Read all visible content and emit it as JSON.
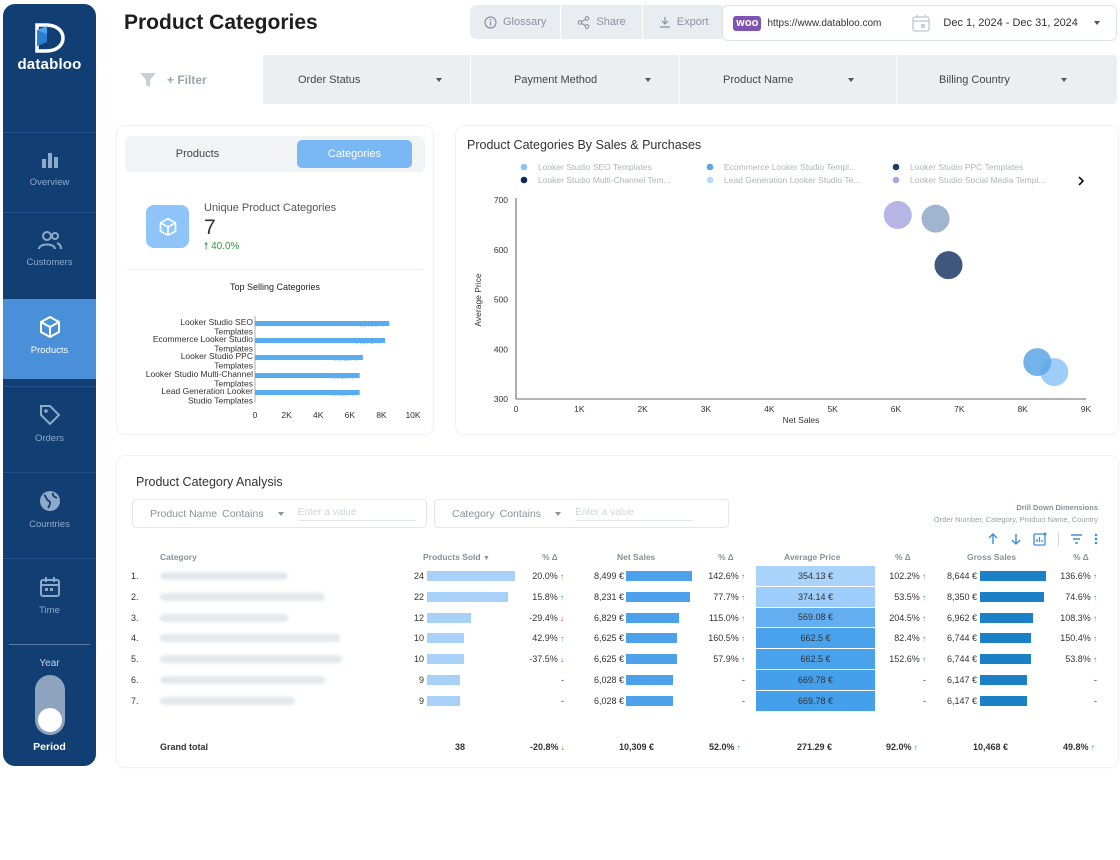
{
  "brand": {
    "name": "databloo"
  },
  "nav": [
    {
      "label": "Overview",
      "icon": "bar-chart-icon",
      "active": false
    },
    {
      "label": "Customers",
      "icon": "users-icon",
      "active": false
    },
    {
      "label": "Products",
      "icon": "cube-icon",
      "active": true
    },
    {
      "label": "Orders",
      "icon": "tag-icon",
      "active": false
    },
    {
      "label": "Countries",
      "icon": "globe-icon",
      "active": false
    },
    {
      "label": "Time",
      "icon": "calendar-icon",
      "active": false
    }
  ],
  "year_toggle": {
    "label": "Year",
    "selected": "Period"
  },
  "header": {
    "title": "Product Categories",
    "glossary_label": "Glossary",
    "share_label": "Share",
    "export_label": "Export",
    "woo_badge": "WOO",
    "url": "https://www.databloo.com",
    "date_range": "Dec 1, 2024 - Dec 31, 2024"
  },
  "filters": {
    "add_label": "+ Filter",
    "dropdowns": [
      "Order Status",
      "Payment Method",
      "Product Name",
      "Billing Country"
    ]
  },
  "summary": {
    "tab_products": "Products",
    "tab_categories": "Categories",
    "kpi_label": "Unique Product Categories",
    "kpi_value": "7",
    "kpi_delta": "40.0%"
  },
  "chart_data": [
    {
      "type": "bar",
      "orientation": "horizontal",
      "title": "Top Selling Categories",
      "categories": [
        [
          "Looker Studio SEO",
          "Templates"
        ],
        [
          "Ecommerce Looker Studio",
          "Templates"
        ],
        [
          "Looker Studio PPC",
          "Templates"
        ],
        [
          "Looker Studio Multi-Channel",
          "Templates"
        ],
        [
          "Lead Generation Looker",
          "Studio Templates"
        ]
      ],
      "values": [
        8499,
        8231,
        6829,
        6625,
        6625
      ],
      "data_labels": [
        "8,499 €",
        "8,231 €",
        "6,829 €",
        "6,625 €",
        "6,625 €"
      ],
      "xlim": [
        0,
        10000
      ],
      "xticks": [
        "0",
        "2K",
        "4K",
        "6K",
        "8K",
        "10K"
      ],
      "color": "#5aacf0"
    },
    {
      "type": "scatter",
      "title": "Product Categories By Sales & Purchases",
      "xlabel": "Net Sales",
      "ylabel": "Average Price",
      "xlim": [
        0,
        9000
      ],
      "ylim": [
        300,
        700
      ],
      "xticks": [
        "0",
        "1K",
        "2K",
        "3K",
        "4K",
        "5K",
        "6K",
        "7K",
        "8K",
        "9K"
      ],
      "yticks": [
        "300",
        "400",
        "500",
        "600",
        "700"
      ],
      "legend_position": "top",
      "series": [
        {
          "name": "Looker Studio SEO Templates",
          "color": "#8ec4f8",
          "points": [
            {
              "x": 8499,
              "y": 354.13
            }
          ]
        },
        {
          "name": "Ecommerce Looker Studio Templ...",
          "color": "#5aa6e6",
          "points": [
            {
              "x": 8231,
              "y": 374.14
            }
          ]
        },
        {
          "name": "Looker Studio PPC Templates",
          "color": "#1b3a66",
          "points": [
            {
              "x": 6829,
              "y": 569.08
            }
          ]
        },
        {
          "name": "Looker Studio Multi-Channel Tem...",
          "color": "#0f2a55",
          "points": []
        },
        {
          "name": "Lead Generation Looker Studio Te...",
          "color": "#b5dafb",
          "points": []
        },
        {
          "name": "Looker Studio Social Media Templ...",
          "color": "#a9a8e0",
          "points": [
            {
              "x": 6028,
              "y": 669.78
            }
          ]
        }
      ],
      "extra_points": [
        {
          "x": 6625,
          "y": 662.5,
          "color": "#8fa9c8"
        }
      ]
    }
  ],
  "table": {
    "title": "Product Category Analysis",
    "filter1": {
      "label": "Product Name",
      "op": "Contains",
      "placeholder": "Enter a value"
    },
    "filter2": {
      "label": "Category",
      "op": "Contains",
      "placeholder": "Enter a value"
    },
    "drill_title": "Drill Down Dimensions",
    "drill_levels": "Order Number, Category, Product Name, Country",
    "columns": [
      "Category",
      "Products Sold",
      "% Δ",
      "Net Sales",
      "% Δ",
      "Average Price",
      "% Δ",
      "Gross Sales",
      "% Δ"
    ],
    "rows": [
      {
        "n": "1.",
        "sold": 24,
        "sold_d": "20.0%",
        "sold_dir": "up",
        "net": "8,499 €",
        "net_v": 8499,
        "net_d": "142.6%",
        "net_dir": "up",
        "avg": "354.13 €",
        "avg_color": "#a9d3fb",
        "avg_d": "102.2%",
        "avg_dir": "up",
        "gross": "8,644 €",
        "gross_v": 8644,
        "gross_d": "136.6%",
        "gross_dir": "up"
      },
      {
        "n": "2.",
        "sold": 22,
        "sold_d": "15.8%",
        "sold_dir": "up",
        "net": "8,231 €",
        "net_v": 8231,
        "net_d": "77.7%",
        "net_dir": "up",
        "avg": "374.14 €",
        "avg_color": "#9dcdfa",
        "avg_d": "53.5%",
        "avg_dir": "up",
        "gross": "8,350 €",
        "gross_v": 8350,
        "gross_d": "74.6%",
        "gross_dir": "up"
      },
      {
        "n": "3.",
        "sold": 12,
        "sold_d": "-29.4%",
        "sold_dir": "down",
        "net": "6,829 €",
        "net_v": 6829,
        "net_d": "115.0%",
        "net_dir": "up",
        "avg": "569.08 €",
        "avg_color": "#62aef0",
        "avg_d": "204.5%",
        "avg_dir": "up",
        "gross": "6,962 €",
        "gross_v": 6962,
        "gross_d": "108.3%",
        "gross_dir": "up"
      },
      {
        "n": "4.",
        "sold": 10,
        "sold_d": "42.9%",
        "sold_dir": "up",
        "net": "6,625 €",
        "net_v": 6625,
        "net_d": "160.5%",
        "net_dir": "up",
        "avg": "662.5 €",
        "avg_color": "#4aa2ec",
        "avg_d": "82.4%",
        "avg_dir": "up",
        "gross": "6,744 €",
        "gross_v": 6744,
        "gross_d": "150.4%",
        "gross_dir": "up"
      },
      {
        "n": "5.",
        "sold": 10,
        "sold_d": "-37.5%",
        "sold_dir": "down",
        "net": "6,625 €",
        "net_v": 6625,
        "net_d": "57.9%",
        "net_dir": "up",
        "avg": "662.5 €",
        "avg_color": "#4aa2ec",
        "avg_d": "152.6%",
        "avg_dir": "up",
        "gross": "6,744 €",
        "gross_v": 6744,
        "gross_d": "53.8%",
        "gross_dir": "up"
      },
      {
        "n": "6.",
        "sold": 9,
        "sold_d": "-",
        "sold_dir": "",
        "net": "6,028 €",
        "net_v": 6028,
        "net_d": "-",
        "net_dir": "",
        "avg": "669.78 €",
        "avg_color": "#45a0eb",
        "avg_d": "-",
        "avg_dir": "",
        "gross": "6,147 €",
        "gross_v": 6147,
        "gross_d": "-",
        "gross_dir": ""
      },
      {
        "n": "7.",
        "sold": 9,
        "sold_d": "-",
        "sold_dir": "",
        "net": "6,028 €",
        "net_v": 6028,
        "net_d": "-",
        "net_dir": "",
        "avg": "669.78 €",
        "avg_color": "#45a0eb",
        "avg_d": "-",
        "avg_dir": "",
        "gross": "6,147 €",
        "gross_v": 6147,
        "gross_d": "-",
        "gross_dir": ""
      }
    ],
    "grand_total": {
      "label": "Grand total",
      "sold": "38",
      "sold_d": "-20.8%",
      "net": "10,309 €",
      "net_d": "52.0%",
      "avg": "271.29 €",
      "avg_d": "92.0%",
      "gross": "10,468 €",
      "gross_d": "49.8%"
    }
  },
  "colors": {
    "sidebar": "#123f73",
    "active_nav": "#4a90d9",
    "accent": "#5aacf0",
    "up": "#2e9b3f",
    "down": "#d23c3c"
  }
}
